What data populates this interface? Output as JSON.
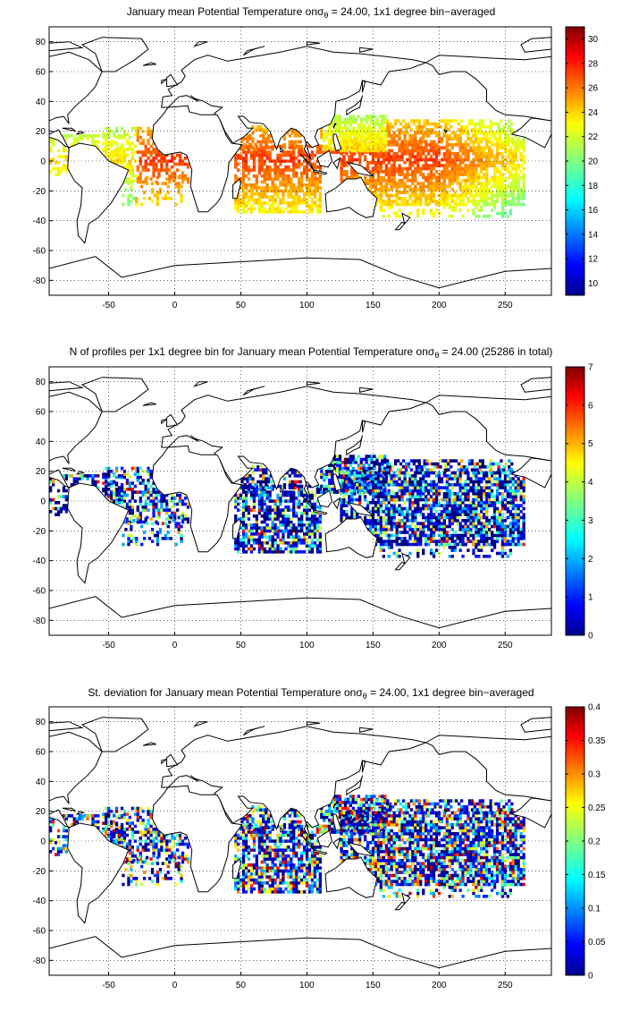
{
  "panels": [
    {
      "id": "mean",
      "title_prefix": "January mean Potential Temperature on",
      "title_symbol": "σ",
      "title_sub": "θ",
      "title_suffix": " = 24.00, 1x1 degree bin−averaged",
      "colorbar_ticks": [
        "30",
        "28",
        "26",
        "24",
        "22",
        "20",
        "18",
        "16",
        "14",
        "12",
        "10"
      ],
      "colorbar_range": [
        9,
        31
      ]
    },
    {
      "id": "count",
      "title_prefix": "N of profiles per 1x1 degree bin for January mean Potential Temperature on",
      "title_symbol": "σ",
      "title_sub": "θ",
      "title_suffix": " = 24.00 (25286 in total)",
      "colorbar_ticks": [
        "7",
        "6",
        "5",
        "4",
        "3",
        "2",
        "1",
        "0"
      ],
      "colorbar_range": [
        0,
        7
      ]
    },
    {
      "id": "std",
      "title_prefix": "St. deviation for January mean Potential Temperature on",
      "title_symbol": "σ",
      "title_sub": "θ",
      "title_suffix": " = 24.00, 1x1 degree bin−averaged",
      "colorbar_ticks": [
        "0.4",
        "0.35",
        "0.3",
        "0.25",
        "0.2",
        "0.15",
        "0.1",
        "0.05",
        "0"
      ],
      "colorbar_range": [
        0,
        0.4
      ]
    }
  ],
  "axes": {
    "x_ticks": [
      "-50",
      "0",
      "50",
      "100",
      "150",
      "200",
      "250"
    ],
    "y_ticks": [
      "80",
      "60",
      "40",
      "20",
      "0",
      "-20",
      "-40",
      "-60",
      "-80"
    ],
    "x_range": [
      -95,
      285
    ],
    "y_range": [
      -90,
      90
    ]
  },
  "colormap": "jet",
  "grid": "dotted"
}
